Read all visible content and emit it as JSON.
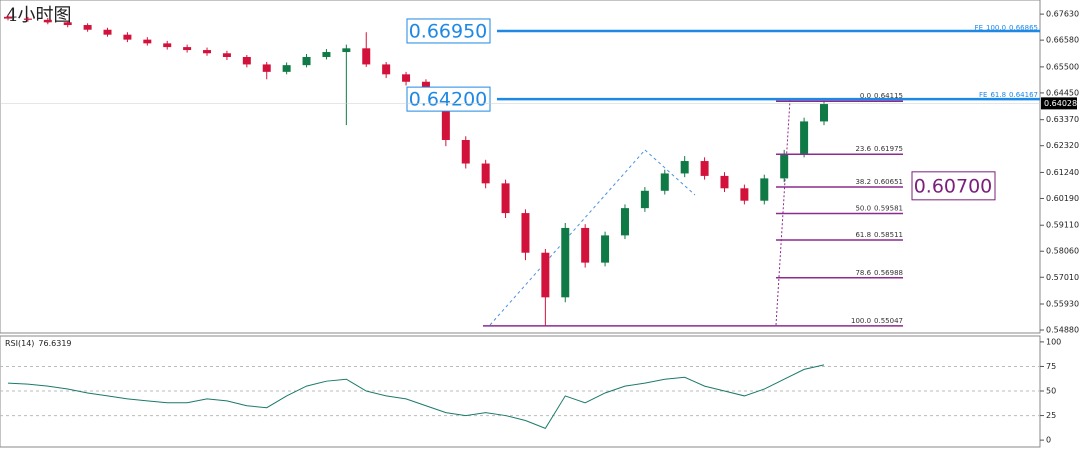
{
  "chart_data": [
    {
      "type": "candlestick",
      "title": "4小时图",
      "up_color": "#0f7a45",
      "down_color": "#d3123c",
      "open": [
        0.6752,
        0.6745,
        0.674,
        0.673,
        0.6719,
        0.67,
        0.668,
        0.666,
        0.6645,
        0.663,
        0.6618,
        0.6605,
        0.659,
        0.656,
        0.653,
        0.6557,
        0.659,
        0.661,
        0.6625,
        0.656,
        0.652,
        0.649,
        0.64,
        0.6255,
        0.616,
        0.608,
        0.596,
        0.58,
        0.562,
        0.59,
        0.576,
        0.587,
        0.598,
        0.605,
        0.612,
        0.617,
        0.611,
        0.606,
        0.601,
        0.61,
        0.62,
        0.633
      ],
      "high": [
        0.6762,
        0.6752,
        0.6748,
        0.6737,
        0.6726,
        0.6708,
        0.669,
        0.667,
        0.6655,
        0.664,
        0.6628,
        0.6615,
        0.6598,
        0.657,
        0.6568,
        0.6602,
        0.6622,
        0.664,
        0.669,
        0.657,
        0.653,
        0.65,
        0.641,
        0.627,
        0.6175,
        0.6095,
        0.5975,
        0.5815,
        0.592,
        0.5915,
        0.5885,
        0.5995,
        0.6065,
        0.6135,
        0.619,
        0.6185,
        0.6125,
        0.6075,
        0.6115,
        0.6215,
        0.6345,
        0.6415
      ],
      "low": [
        0.6738,
        0.6732,
        0.6722,
        0.671,
        0.6692,
        0.6672,
        0.665,
        0.6636,
        0.662,
        0.6608,
        0.6595,
        0.6578,
        0.6548,
        0.65,
        0.652,
        0.6548,
        0.658,
        0.6315,
        0.655,
        0.6505,
        0.6475,
        0.638,
        0.623,
        0.614,
        0.606,
        0.594,
        0.577,
        0.5505,
        0.56,
        0.574,
        0.5745,
        0.5855,
        0.5965,
        0.6035,
        0.6105,
        0.6095,
        0.6045,
        0.5995,
        0.5995,
        0.6085,
        0.6185,
        0.6315
      ],
      "close": [
        0.6745,
        0.674,
        0.673,
        0.6719,
        0.67,
        0.668,
        0.666,
        0.6645,
        0.663,
        0.6618,
        0.6605,
        0.659,
        0.656,
        0.653,
        0.6557,
        0.659,
        0.661,
        0.6625,
        0.656,
        0.652,
        0.649,
        0.64,
        0.6255,
        0.616,
        0.608,
        0.596,
        0.58,
        0.562,
        0.59,
        0.576,
        0.587,
        0.598,
        0.605,
        0.612,
        0.617,
        0.611,
        0.606,
        0.601,
        0.61,
        0.62,
        0.633,
        0.64
      ],
      "ylim": [
        0.5476,
        0.682
      ],
      "yticks": [
        {
          "value": 0.6763,
          "label": "0.67630"
        },
        {
          "value": 0.6658,
          "label": "0.66580"
        },
        {
          "value": 0.655,
          "label": "0.65500"
        },
        {
          "value": 0.6445,
          "label": "0.64450"
        },
        {
          "value": 0.6337,
          "label": "0.63370"
        },
        {
          "value": 0.6232,
          "label": "0.62320"
        },
        {
          "value": 0.6124,
          "label": "0.61240"
        },
        {
          "value": 0.6019,
          "label": "0.60190"
        },
        {
          "value": 0.5911,
          "label": "0.59110"
        },
        {
          "value": 0.5806,
          "label": "0.58060"
        },
        {
          "value": 0.5701,
          "label": "0.57010"
        },
        {
          "value": 0.5593,
          "label": "0.55930"
        },
        {
          "value": 0.5488,
          "label": "0.54880"
        }
      ],
      "last_price": 0.64028,
      "price_levels": [
        {
          "value": 0.6695,
          "label": "0.66950"
        },
        {
          "value": 0.642,
          "label": "0.64200"
        }
      ],
      "level_color": "#1e88e5",
      "target": {
        "value": 0.607,
        "label": "0.60700"
      },
      "target_color": "#7b1f7b",
      "fibonacci": {
        "color": "#8e2a8e",
        "ratios": [
          {
            "value": 0,
            "label": "0.0"
          },
          23.6,
          38.2,
          {
            "value": 50,
            "label": "50.0"
          },
          61.8,
          78.6,
          {
            "value": 100,
            "label": "100.0"
          }
        ],
        "prices": [
          0.64115,
          0.61975,
          0.60651,
          0.59581,
          0.58511,
          0.56988,
          0.55047
        ]
      },
      "expansion": {
        "name": "FE",
        "color": "#1e88e5",
        "ratios": [
          {
            "value": 100,
            "label": "100.0"
          },
          61.8
        ],
        "prices": [
          0.66865,
          0.64167
        ]
      }
    },
    {
      "type": "line",
      "title": "RSI(14)",
      "current": 76.6319,
      "color": "#1a7a6a",
      "values": [
        58,
        57,
        55,
        52,
        48,
        45,
        42,
        40,
        38,
        38,
        42,
        40,
        35,
        33,
        45,
        55,
        60,
        62,
        50,
        45,
        42,
        35,
        28,
        25,
        28,
        25,
        20,
        12,
        45,
        38,
        48,
        55,
        58,
        62,
        64,
        55,
        50,
        45,
        52,
        62,
        72,
        76.6319
      ],
      "ylim": [
        -7,
        106
      ],
      "yticks": [
        0,
        25,
        50,
        75,
        100
      ],
      "grid_levels": [
        25,
        50,
        75
      ]
    }
  ]
}
